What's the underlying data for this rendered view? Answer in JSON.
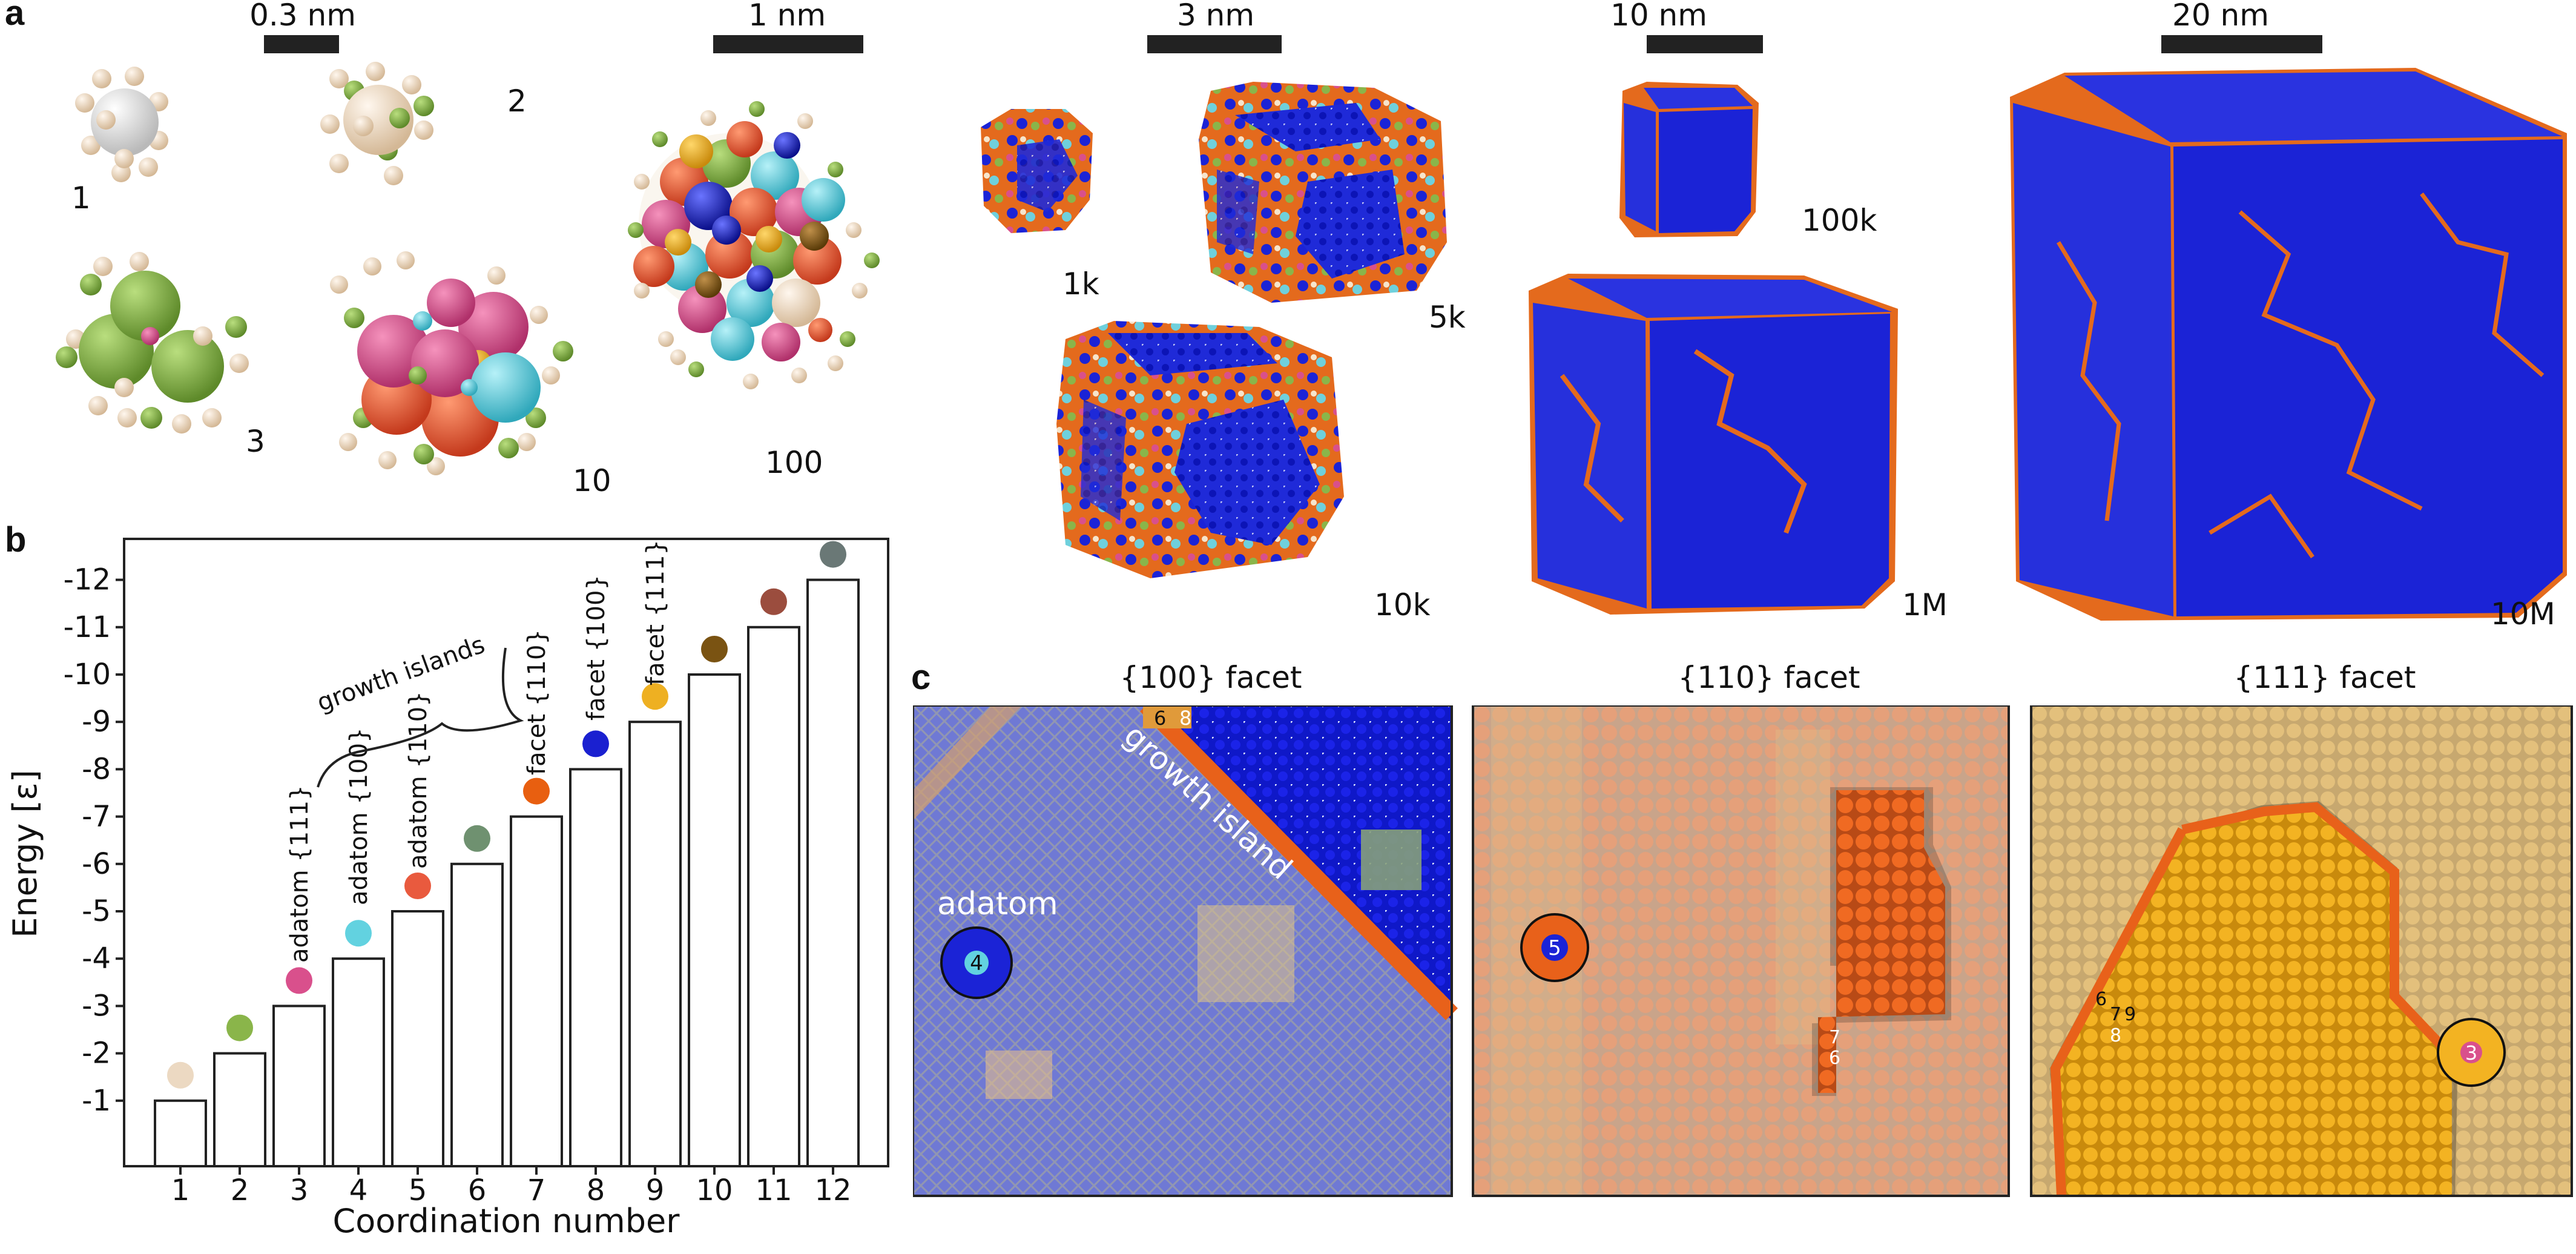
{
  "panel_labels": {
    "a": "a",
    "b": "b",
    "c": "c"
  },
  "panel_a": {
    "scale_bars": [
      "0.3 nm",
      "1 nm",
      "3 nm",
      "10 nm",
      "20 nm"
    ],
    "cluster_labels": [
      "1",
      "2",
      "3",
      "10",
      "100",
      "1k",
      "5k",
      "10k",
      "100k",
      "1M",
      "10M"
    ]
  },
  "panel_b": {
    "annotations": {
      "adatom_111": "adatom {111}",
      "adatom_100": "adatom {100}",
      "adatom_110": "adatom {110}",
      "facet_110": "facet {110}",
      "facet_100": "facet {100}",
      "facet_111": "facet {111}",
      "growth_islands": "growth islands"
    }
  },
  "panel_c": {
    "titles": [
      "{100} facet",
      "{110} facet",
      "{111} facet"
    ],
    "labels": {
      "adatom": "adatom",
      "growth_island": "growth island"
    },
    "numbers": [
      "4",
      "6",
      "8",
      "5",
      "7",
      "6",
      "6",
      "7",
      "9",
      "8",
      "3"
    ]
  },
  "colors": {
    "cn1": "#ecd9c2",
    "cn2": "#8ab54a",
    "cn3": "#d9508c",
    "cn4": "#62d2e0",
    "cn5": "#e95a3e",
    "cn6": "#6f9170",
    "cn7": "#e85f10",
    "cn8": "#1a20d0",
    "cn9": "#eeb022",
    "cn10": "#7a5312",
    "cn11": "#9b4d3e",
    "cn12": "#6a7876",
    "facet_blue": "#1b23d6",
    "edge_orange": "#e46a1d"
  },
  "chart_data": {
    "type": "bar",
    "categories": [
      "1",
      "2",
      "3",
      "4",
      "5",
      "6",
      "7",
      "8",
      "9",
      "10",
      "11",
      "12"
    ],
    "values": [
      -1,
      -2,
      -3,
      -4,
      -5,
      -6,
      -7,
      -8,
      -9,
      -10,
      -11,
      -12
    ],
    "xlabel": "Coordination number",
    "ylabel": "Energy [ε]",
    "ylim": [
      0,
      -12.6
    ],
    "yticks": [
      "-1",
      "-2",
      "-3",
      "-4",
      "-5",
      "-6",
      "-7",
      "-8",
      "-9",
      "-10",
      "-11",
      "-12"
    ],
    "grid": false
  }
}
